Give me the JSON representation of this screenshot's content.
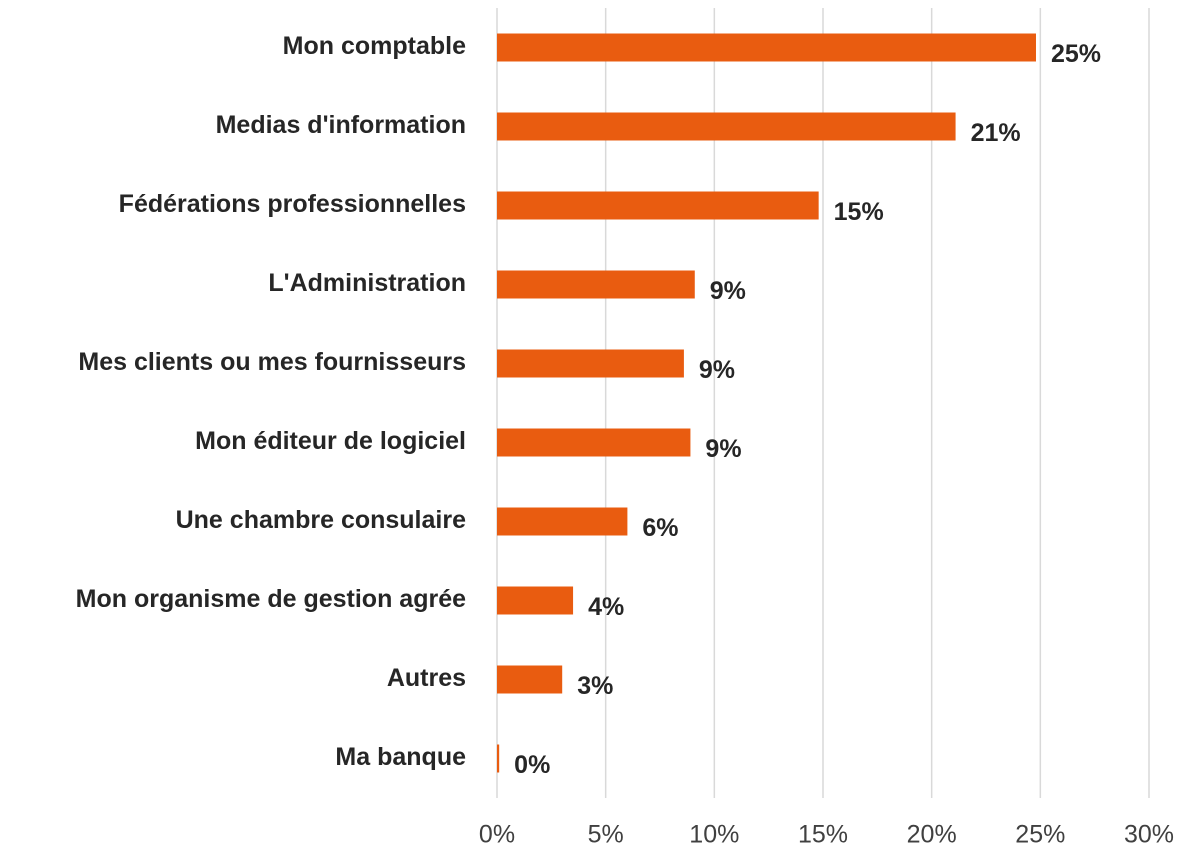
{
  "chart_data": {
    "type": "bar",
    "orientation": "horizontal",
    "categories": [
      "Mon comptable",
      "Medias d'information",
      "Fédérations professionnelles",
      "L'Administration",
      "Mes clients ou mes fournisseurs",
      "Mon éditeur de logiciel",
      "Une chambre consulaire",
      "Mon organisme de gestion agrée",
      "Autres",
      "Ma banque"
    ],
    "values": [
      24.8,
      21.1,
      14.8,
      9.1,
      8.6,
      8.9,
      6.0,
      3.5,
      3.0,
      0.1
    ],
    "value_labels": [
      "25%",
      "21%",
      "15%",
      "9%",
      "9%",
      "9%",
      "6%",
      "4%",
      "3%",
      "0%"
    ],
    "color": "#e95c10",
    "xlim": [
      0,
      30
    ],
    "xticks": [
      {
        "value": 0,
        "label": "0%"
      },
      {
        "value": 5,
        "label": "5%"
      },
      {
        "value": 10,
        "label": "10%"
      },
      {
        "value": 15,
        "label": "15%"
      },
      {
        "value": 20,
        "label": "20%"
      },
      {
        "value": 25,
        "label": "25%"
      },
      {
        "value": 30,
        "label": "30%"
      }
    ],
    "grid": true
  }
}
